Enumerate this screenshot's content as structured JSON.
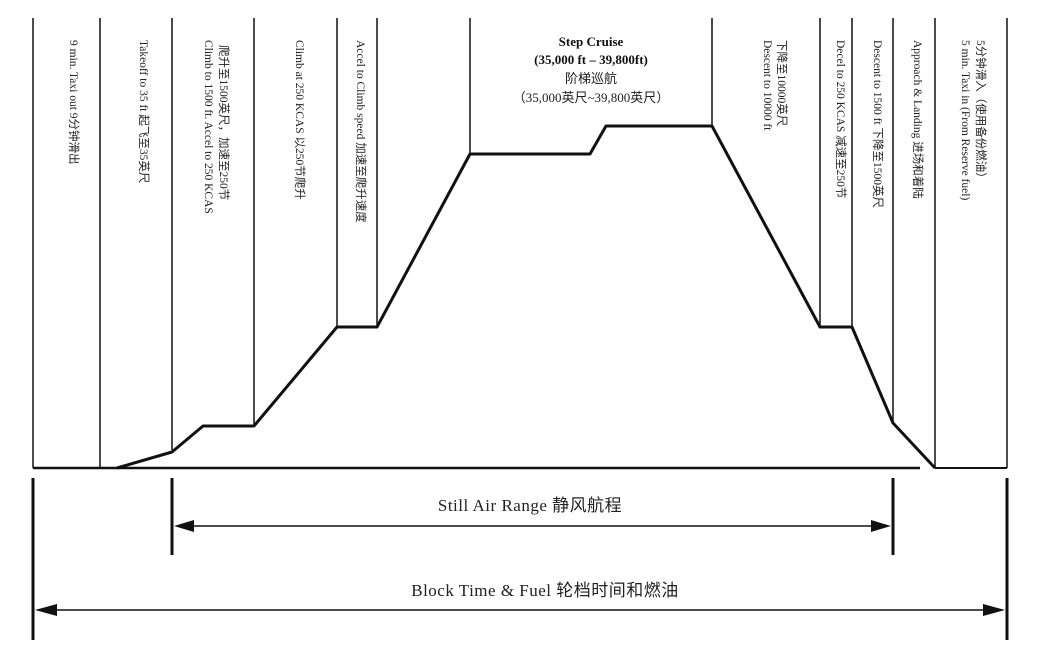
{
  "phases": [
    {
      "id": "taxi-out",
      "label": "9 min. Taxi out 9分钟滑出"
    },
    {
      "id": "takeoff",
      "label": "Takeoff to 35 ft 起飞至35英尺"
    },
    {
      "id": "climb-1500-a",
      "label": "Climb to 1500 ft. Accel to 250 KCAS"
    },
    {
      "id": "climb-1500-b",
      "label": "爬升至1500英尺，加速至250节"
    },
    {
      "id": "climb-250",
      "label": "Climb at 250 KCAS 以250节爬升"
    },
    {
      "id": "accel-climb",
      "label": "Accel to Climb speed 加速至爬升速度"
    },
    {
      "id": "descent-10000-a",
      "label": "Descent to 10000 ft"
    },
    {
      "id": "descent-10000-b",
      "label": "下降至10000英尺"
    },
    {
      "id": "decel-250",
      "label": "Decel to 250 KCAS 减速至250节"
    },
    {
      "id": "descent-1500",
      "label": "Descent to 1500 ft 下降至1500英尺"
    },
    {
      "id": "approach",
      "label": "Approach & Landing 进场和着陆"
    },
    {
      "id": "taxi-in-a",
      "label": "5 min. Taxi in (From Reserve fuel)"
    },
    {
      "id": "taxi-in-b",
      "label": "5分钟滑入（使用备份燃油）"
    }
  ],
  "cruise": {
    "title": "Step Cruise",
    "range_en": "(35,000 ft – 39,800ft)",
    "title_cn": "阶梯巡航",
    "range_cn": "（35,000英尺~39,800英尺）"
  },
  "still_air_range": "Still Air Range  静风航程",
  "block_time_fuel": "Block Time & Fuel  轮档时间和燃油"
}
